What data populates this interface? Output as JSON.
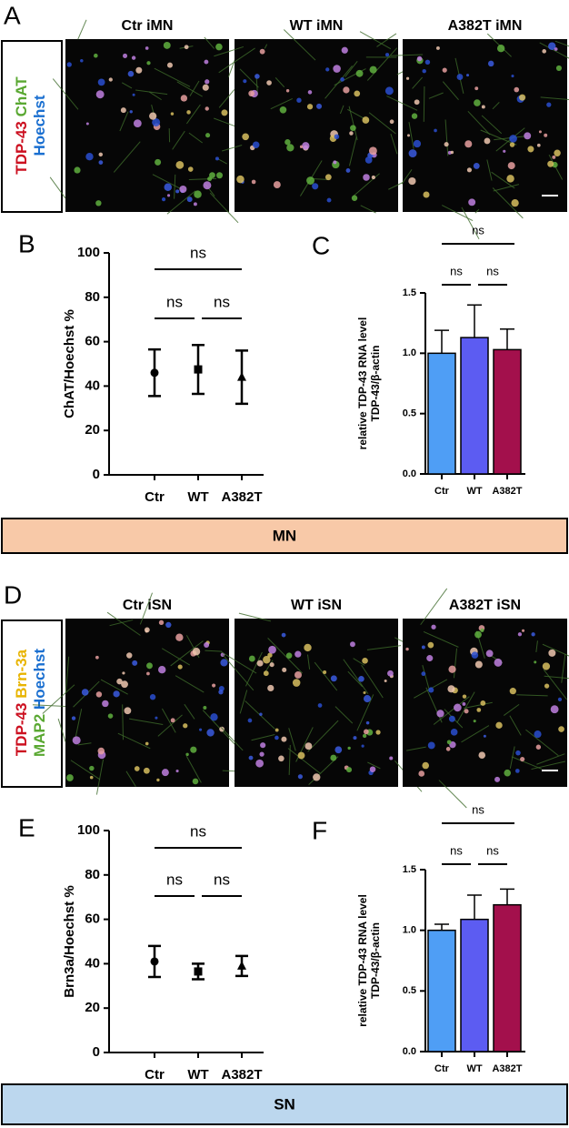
{
  "panel_A": {
    "letter": "A",
    "columns": [
      "Ctr iMN",
      "WT iMN",
      "A382T iMN"
    ],
    "channels": [
      [
        {
          "text": "TDP-43",
          "color": "#cc1020"
        },
        {
          "text": "ChAT",
          "color": "#5aa832"
        }
      ],
      [
        {
          "text": "Hoechst",
          "color": "#1a6fd0"
        }
      ]
    ]
  },
  "panel_D": {
    "letter": "D",
    "columns": [
      "Ctr iSN",
      "WT iSN",
      "A382T iSN"
    ],
    "channels": [
      [
        {
          "text": "TDP-43",
          "color": "#cc1020"
        },
        {
          "text": "Brn-3a",
          "color": "#e8b400"
        }
      ],
      [
        {
          "text": "MAP2",
          "color": "#5aa832"
        },
        {
          "text": "Hoechst",
          "color": "#1a6fd0"
        }
      ]
    ]
  },
  "bands": [
    {
      "text": "MN",
      "color": "#f8c9a8"
    },
    {
      "text": "SN",
      "color": "#bcd7ee"
    }
  ],
  "chart_data": [
    {
      "type": "errorbar",
      "letter": "B",
      "ylabel": [
        "ChAT/Hoechst %"
      ],
      "categories": [
        "Ctr",
        "WT",
        "A382T"
      ],
      "values": [
        46,
        47.5,
        44
      ],
      "errors": [
        10.5,
        11,
        12
      ],
      "markers": [
        "circle",
        "square",
        "triangle"
      ],
      "color": "#000000",
      "ylim": [
        0,
        100
      ],
      "yticks": [
        0,
        20,
        40,
        60,
        80,
        100
      ],
      "comparisons": [
        {
          "from": "Ctr",
          "to": "A382T",
          "label": "ns"
        },
        {
          "from": "Ctr",
          "to": "WT",
          "label": "ns"
        },
        {
          "from": "WT",
          "to": "A382T",
          "label": "ns"
        }
      ]
    },
    {
      "type": "bar",
      "letter": "C",
      "ylabel": [
        "relative TDP-43 RNA level",
        "TDP-43/β-actin"
      ],
      "categories": [
        "Ctr",
        "WT",
        "A382T"
      ],
      "values": [
        1.0,
        1.13,
        1.03
      ],
      "errors": [
        0.19,
        0.27,
        0.17
      ],
      "colors": [
        "#4f9ef5",
        "#5c5cf2",
        "#a3104c"
      ],
      "ylim": [
        0,
        1.5
      ],
      "yticks": [
        {
          "value": 0,
          "label": "0.0"
        },
        0.5,
        {
          "value": 1,
          "label": "1.0"
        },
        1.5
      ],
      "comparisons": [
        {
          "from": "Ctr",
          "to": "A382T",
          "label": "ns"
        },
        {
          "from": "Ctr",
          "to": "WT",
          "label": "ns"
        },
        {
          "from": "WT",
          "to": "A382T",
          "label": "ns"
        }
      ]
    },
    {
      "type": "errorbar",
      "letter": "E",
      "ylabel": [
        "Brn3a/Hoechst %"
      ],
      "categories": [
        "Ctr",
        "WT",
        "A382T"
      ],
      "values": [
        41,
        36.5,
        39
      ],
      "errors": [
        7,
        3.5,
        4.5
      ],
      "markers": [
        "circle",
        "square",
        "triangle"
      ],
      "color": "#000000",
      "ylim": [
        0,
        100
      ],
      "yticks": [
        0,
        20,
        40,
        60,
        80,
        100
      ],
      "comparisons": [
        {
          "from": "Ctr",
          "to": "A382T",
          "label": "ns"
        },
        {
          "from": "Ctr",
          "to": "WT",
          "label": "ns"
        },
        {
          "from": "WT",
          "to": "A382T",
          "label": "ns"
        }
      ]
    },
    {
      "type": "bar",
      "letter": "F",
      "ylabel": [
        "relative TDP-43 RNA level",
        "TDP-43/β-actin"
      ],
      "categories": [
        "Ctr",
        "WT",
        "A382T"
      ],
      "values": [
        1.0,
        1.09,
        1.21
      ],
      "errors": [
        0.05,
        0.2,
        0.13
      ],
      "colors": [
        "#4f9ef5",
        "#5c5cf2",
        "#a3104c"
      ],
      "ylim": [
        0,
        1.5
      ],
      "yticks": [
        {
          "value": 0,
          "label": "0.0"
        },
        0.5,
        {
          "value": 1,
          "label": "1.0"
        },
        1.5
      ],
      "comparisons": [
        {
          "from": "Ctr",
          "to": "A382T",
          "label": "ns"
        },
        {
          "from": "Ctr",
          "to": "WT",
          "label": "ns"
        },
        {
          "from": "WT",
          "to": "A382T",
          "label": "ns"
        }
      ]
    }
  ]
}
